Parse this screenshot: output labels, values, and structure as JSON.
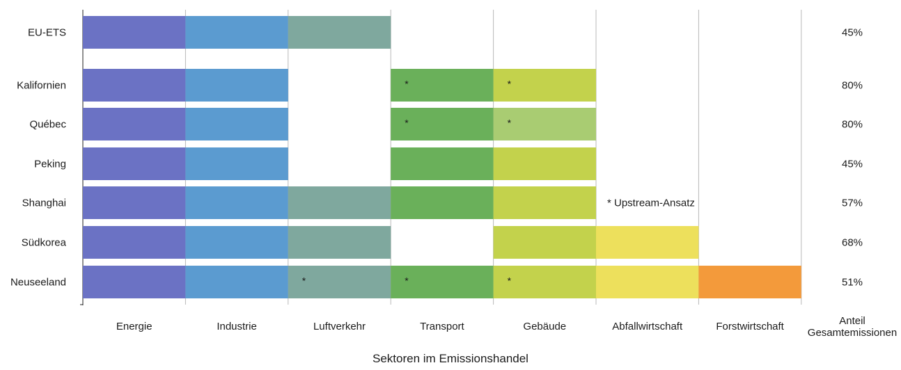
{
  "chart_data": {
    "type": "table",
    "xlabel": "Sektoren im Emissionshandel",
    "share_column_header": [
      "Anteil",
      "Gesamtemissionen"
    ],
    "sectors": [
      "Energie",
      "Industrie",
      "Luftverkehr",
      "Transport",
      "Gebäude",
      "Abfallwirtschaft",
      "Forstwirtschaft"
    ],
    "sector_colors": {
      "Energie": "#6b72c4",
      "Industrie": "#5b9bd0",
      "Luftverkehr": "#7fa89e",
      "Transport": "#6ab05a",
      "Gebäude": "#c3d24c",
      "Abfallwirtschaft": "#ede05c",
      "Forstwirtschaft": "#f39a3b"
    },
    "annotation": "* Upstream-Ansatz",
    "rows": [
      {
        "name": "EU-ETS",
        "share": "45%",
        "covered": [
          "Energie",
          "Industrie",
          "Luftverkehr"
        ],
        "upstream": []
      },
      {
        "name": "Kalifornien",
        "share": "80%",
        "covered": [
          "Energie",
          "Industrie",
          "Transport",
          "Gebäude"
        ],
        "upstream": [
          "Transport",
          "Gebäude"
        ]
      },
      {
        "name": "Québec",
        "share": "80%",
        "covered": [
          "Energie",
          "Industrie",
          "Transport",
          "Gebäude"
        ],
        "upstream": [
          "Transport",
          "Gebäude"
        ],
        "color_override": {
          "Gebäude": "#a9cc72"
        }
      },
      {
        "name": "Peking",
        "share": "45%",
        "covered": [
          "Energie",
          "Industrie",
          "Transport",
          "Gebäude"
        ],
        "upstream": []
      },
      {
        "name": "Shanghai",
        "share": "57%",
        "covered": [
          "Energie",
          "Industrie",
          "Luftverkehr",
          "Transport",
          "Gebäude"
        ],
        "upstream": []
      },
      {
        "name": "Südkorea",
        "share": "68%",
        "covered": [
          "Energie",
          "Industrie",
          "Luftverkehr",
          "Gebäude",
          "Abfallwirtschaft"
        ],
        "upstream": []
      },
      {
        "name": "Neuseeland",
        "share": "51%",
        "covered": [
          "Energie",
          "Industrie",
          "Luftverkehr",
          "Transport",
          "Gebäude",
          "Abfallwirtschaft",
          "Forstwirtschaft"
        ],
        "upstream": [
          "Luftverkehr",
          "Transport",
          "Gebäude"
        ]
      }
    ]
  }
}
